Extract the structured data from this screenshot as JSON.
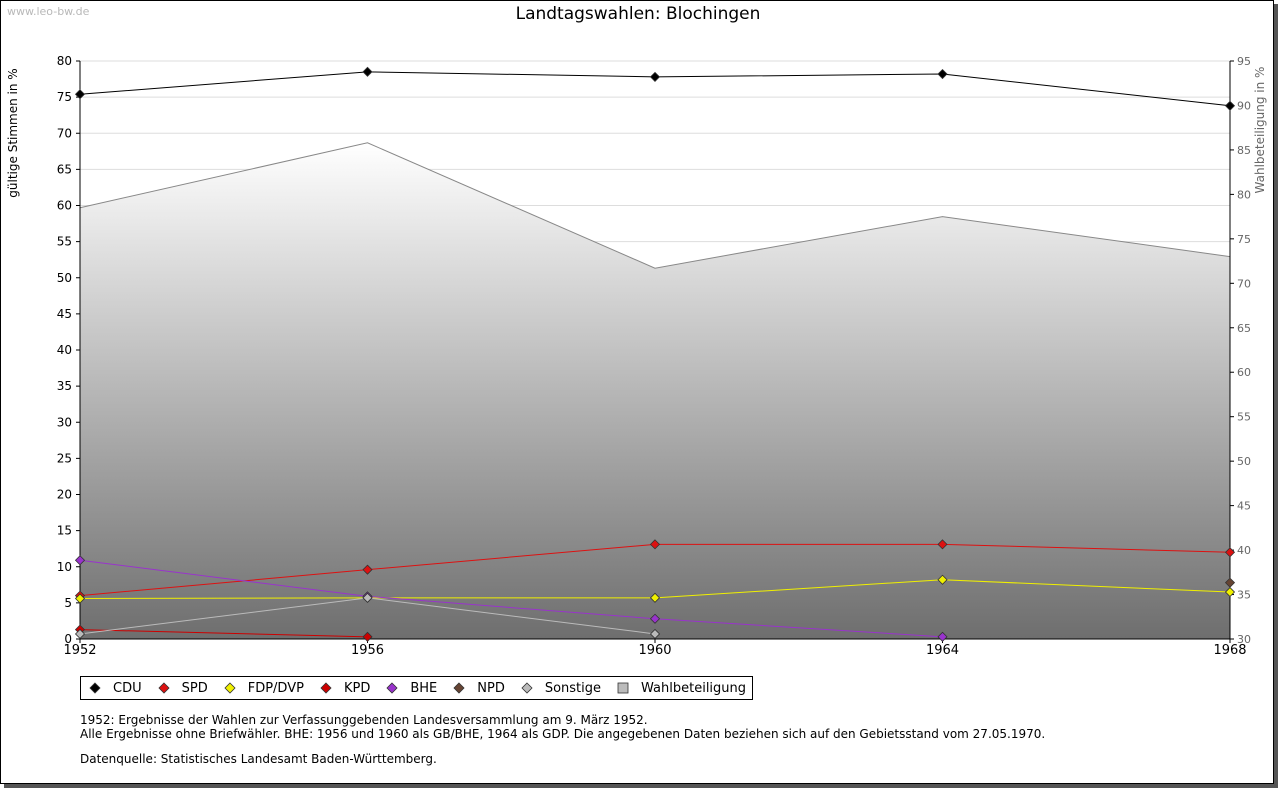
{
  "watermark": "www.leo-bw.de",
  "chart_data": {
    "type": "line",
    "title": "Landtagswahlen: Blochingen",
    "ylabel": "gültige Stimmen in %",
    "ylabel_right": "Wahlbeteiligung in %",
    "x": [
      1952,
      1956,
      1960,
      1964,
      1968
    ],
    "x_tick_labels": [
      "1952",
      "1956",
      "1960",
      "1964",
      "1968"
    ],
    "ylim": [
      0,
      80
    ],
    "yticks": [
      0,
      5,
      10,
      15,
      20,
      25,
      30,
      35,
      40,
      45,
      50,
      55,
      60,
      65,
      70,
      75,
      80
    ],
    "y2lim": [
      30,
      95
    ],
    "y2ticks": [
      30,
      35,
      40,
      45,
      50,
      55,
      60,
      65,
      70,
      75,
      80,
      85,
      90,
      95
    ],
    "grid": true,
    "legend_position": "bottom",
    "series": [
      {
        "name": "CDU",
        "color": "#000000",
        "values": [
          75.4,
          78.5,
          77.8,
          78.2,
          73.8
        ]
      },
      {
        "name": "SPD",
        "color": "#dd1111",
        "values": [
          6.0,
          9.6,
          13.1,
          13.1,
          12.0
        ]
      },
      {
        "name": "FDP/DVP",
        "color": "#f0f000",
        "values": [
          5.6,
          5.7,
          5.7,
          8.2,
          6.5
        ]
      },
      {
        "name": "KPD",
        "color": "#cc0000",
        "values": [
          1.3,
          0.3,
          null,
          null,
          null
        ]
      },
      {
        "name": "BHE",
        "color": "#9933cc",
        "values": [
          10.9,
          5.9,
          2.8,
          0.3,
          null
        ]
      },
      {
        "name": "NPD",
        "color": "#664433",
        "values": [
          null,
          null,
          null,
          null,
          7.8
        ]
      },
      {
        "name": "Sonstige",
        "color": "#bbbbbb",
        "values": [
          0.7,
          5.7,
          0.7,
          null,
          null
        ]
      }
    ],
    "turnout": {
      "name": "Wahlbeteiligung",
      "color": "#888888",
      "axis": "right",
      "values": [
        78.5,
        85.8,
        71.7,
        77.5,
        73.0
      ]
    }
  },
  "legend": [
    {
      "label": "CDU",
      "color": "#000000",
      "shape": "diamond"
    },
    {
      "label": "SPD",
      "color": "#dd1111",
      "shape": "diamond"
    },
    {
      "label": "FDP/DVP",
      "color": "#f0f000",
      "shape": "diamond"
    },
    {
      "label": "KPD",
      "color": "#cc0000",
      "shape": "diamond"
    },
    {
      "label": "BHE",
      "color": "#9933cc",
      "shape": "diamond"
    },
    {
      "label": "NPD",
      "color": "#664433",
      "shape": "diamond"
    },
    {
      "label": "Sonstige",
      "color": "#bbbbbb",
      "shape": "diamond"
    },
    {
      "label": "Wahlbeteiligung",
      "color": "#bbbbbb",
      "shape": "square"
    }
  ],
  "notes": [
    "1952: Ergebnisse der Wahlen zur Verfassunggebenden Landesversammlung am 9. März 1952.",
    "Alle Ergebnisse ohne Briefwähler. BHE: 1956 und 1960 als GB/BHE, 1964 als GDP. Die angegebenen Daten beziehen sich auf den Gebietsstand vom 27.05.1970."
  ],
  "source": "Datenquelle: Statistisches Landesamt Baden-Württemberg."
}
